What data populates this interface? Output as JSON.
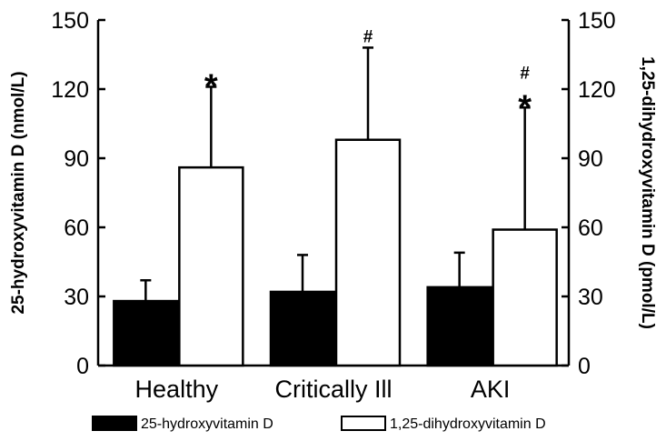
{
  "chart_data": {
    "type": "bar",
    "categories": [
      "Healthy",
      "Critically Ill",
      "AKI"
    ],
    "series": [
      {
        "name": "25-hydroxyvitamin D",
        "values": [
          28,
          32,
          34
        ],
        "errors": [
          9,
          16,
          15
        ],
        "axis": "left",
        "fill": "#000000",
        "markers": [
          "",
          "",
          ""
        ]
      },
      {
        "name": "1,25-dihydroxyvitamin D",
        "values": [
          86,
          98,
          59
        ],
        "errors": [
          35,
          40,
          53
        ],
        "axis": "right",
        "fill": "#ffffff",
        "markers": [
          "*",
          "#",
          "#*"
        ]
      }
    ],
    "ylabel": "25-hydroxyvitamin D (nmol/L)",
    "y2label": "1,25-dihydroxyvitamin D (pmol/L)",
    "ylim": [
      0,
      150
    ],
    "y2lim": [
      0,
      150
    ],
    "yticks": [
      0,
      30,
      60,
      90,
      120,
      150
    ],
    "y2ticks": [
      0,
      30,
      60,
      90,
      120,
      150
    ],
    "grid": false,
    "legend": "bottom"
  }
}
